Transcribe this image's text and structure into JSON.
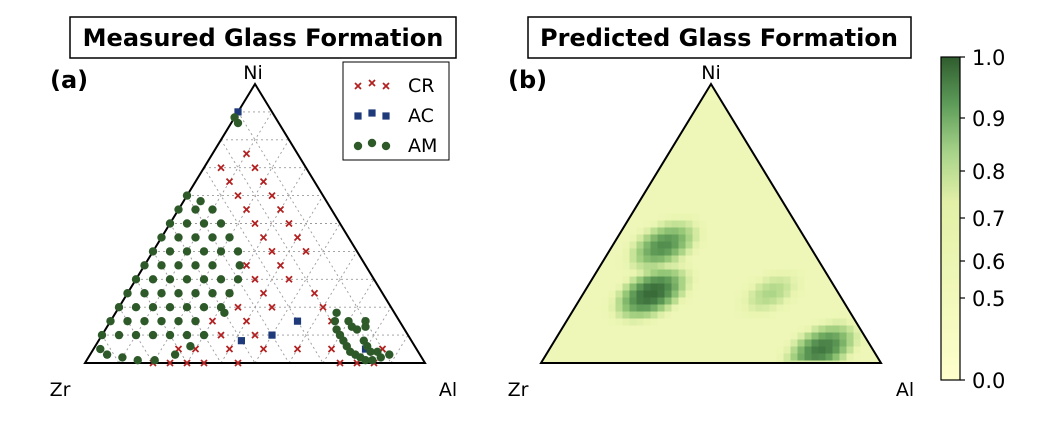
{
  "chart_data": [
    {
      "type": "scatter",
      "panel_label": "(a)",
      "title": "Measured Glass Formation",
      "vertices": {
        "top": "Ni",
        "left": "Zr",
        "right": "Al"
      },
      "legend": [
        {
          "label": "CR",
          "marker": "x",
          "color": "#b22222"
        },
        {
          "label": "AC",
          "marker": "square",
          "color": "#1f3a7a"
        },
        {
          "label": "AM",
          "marker": "circle",
          "color": "#2e5a2a"
        }
      ],
      "series": [
        {
          "name": "CR",
          "points": [
            [
              0.1,
              0.75
            ],
            [
              0.05,
              0.7
            ],
            [
              0.15,
              0.7
            ],
            [
              0.1,
              0.65
            ],
            [
              0.2,
              0.65
            ],
            [
              0.15,
              0.6
            ],
            [
              0.25,
              0.6
            ],
            [
              0.2,
              0.55
            ],
            [
              0.3,
              0.55
            ],
            [
              0.25,
              0.5
            ],
            [
              0.35,
              0.5
            ],
            [
              0.3,
              0.45
            ],
            [
              0.4,
              0.45
            ],
            [
              0.35,
              0.4
            ],
            [
              0.45,
              0.4
            ],
            [
              0.4,
              0.35
            ],
            [
              0.3,
              0.35
            ],
            [
              0.35,
              0.3
            ],
            [
              0.45,
              0.3
            ],
            [
              0.4,
              0.25
            ],
            [
              0.3,
              0.25
            ],
            [
              0.35,
              0.2
            ],
            [
              0.45,
              0.2
            ],
            [
              0.4,
              0.15
            ],
            [
              0.3,
              0.15
            ],
            [
              0.35,
              0.1
            ],
            [
              0.45,
              0.1
            ],
            [
              0.4,
              0.05
            ],
            [
              0.3,
              0.05
            ],
            [
              0.35,
              0.0
            ],
            [
              0.45,
              0.0
            ],
            [
              0.55,
              0.25
            ],
            [
              0.6,
              0.2
            ],
            [
              0.65,
              0.15
            ],
            [
              0.7,
              0.1
            ],
            [
              0.5,
              0.05
            ],
            [
              0.6,
              0.05
            ],
            [
              0.7,
              0.05
            ],
            [
              0.75,
              0.0
            ],
            [
              0.85,
              0.05
            ],
            [
              0.8,
              0.0
            ],
            [
              0.85,
              0.0
            ],
            [
              0.25,
              0.05
            ],
            [
              0.2,
              0.0
            ],
            [
              0.25,
              0.0
            ],
            [
              0.3,
              0.0
            ]
          ]
        },
        {
          "name": "AC",
          "points": [
            [
              0.0,
              0.9
            ],
            [
              0.55,
              0.15
            ],
            [
              0.5,
              0.1
            ],
            [
              0.42,
              0.08
            ],
            [
              0.8,
              0.05
            ]
          ]
        },
        {
          "name": "AM",
          "points": [
            [
              0.0,
              0.88
            ],
            [
              0.02,
              0.86
            ],
            [
              0.0,
              0.6
            ],
            [
              0.0,
              0.55
            ],
            [
              0.0,
              0.5
            ],
            [
              0.0,
              0.45
            ],
            [
              0.0,
              0.4
            ],
            [
              0.0,
              0.35
            ],
            [
              0.0,
              0.3
            ],
            [
              0.0,
              0.25
            ],
            [
              0.0,
              0.2
            ],
            [
              0.0,
              0.15
            ],
            [
              0.0,
              0.1
            ],
            [
              0.05,
              0.55
            ],
            [
              0.05,
              0.5
            ],
            [
              0.05,
              0.45
            ],
            [
              0.05,
              0.4
            ],
            [
              0.05,
              0.35
            ],
            [
              0.05,
              0.3
            ],
            [
              0.05,
              0.25
            ],
            [
              0.05,
              0.2
            ],
            [
              0.05,
              0.15
            ],
            [
              0.05,
              0.1
            ],
            [
              0.1,
              0.5
            ],
            [
              0.1,
              0.45
            ],
            [
              0.1,
              0.4
            ],
            [
              0.1,
              0.35
            ],
            [
              0.1,
              0.3
            ],
            [
              0.1,
              0.25
            ],
            [
              0.1,
              0.2
            ],
            [
              0.1,
              0.15
            ],
            [
              0.1,
              0.1
            ],
            [
              0.15,
              0.45
            ],
            [
              0.15,
              0.4
            ],
            [
              0.15,
              0.35
            ],
            [
              0.15,
              0.3
            ],
            [
              0.15,
              0.25
            ],
            [
              0.15,
              0.2
            ],
            [
              0.15,
              0.15
            ],
            [
              0.15,
              0.1
            ],
            [
              0.2,
              0.4
            ],
            [
              0.2,
              0.35
            ],
            [
              0.2,
              0.3
            ],
            [
              0.2,
              0.25
            ],
            [
              0.2,
              0.2
            ],
            [
              0.2,
              0.15
            ],
            [
              0.2,
              0.1
            ],
            [
              0.25,
              0.3
            ],
            [
              0.25,
              0.25
            ],
            [
              0.25,
              0.2
            ],
            [
              0.25,
              0.15
            ],
            [
              0.25,
              0.1
            ],
            [
              0.3,
              0.2
            ],
            [
              0.02,
              0.05
            ],
            [
              0.05,
              0.03
            ],
            [
              0.1,
              0.02
            ],
            [
              0.15,
              0.01
            ],
            [
              0.2,
              0.01
            ],
            [
              0.25,
              0.03
            ],
            [
              0.28,
              0.06
            ],
            [
              0.3,
              0.1
            ],
            [
              0.05,
              0.58
            ],
            [
              0.1,
              0.55
            ],
            [
              0.15,
              0.5
            ],
            [
              0.2,
              0.45
            ],
            [
              0.25,
              0.4
            ],
            [
              0.28,
              0.35
            ],
            [
              0.3,
              0.3
            ],
            [
              0.3,
              0.25
            ],
            [
              0.32,
              0.18
            ],
            [
              0.65,
              0.18
            ],
            [
              0.66,
              0.15
            ],
            [
              0.68,
              0.12
            ],
            [
              0.7,
              0.1
            ],
            [
              0.72,
              0.08
            ],
            [
              0.74,
              0.06
            ],
            [
              0.76,
              0.04
            ],
            [
              0.78,
              0.03
            ],
            [
              0.8,
              0.02
            ],
            [
              0.82,
              0.01
            ],
            [
              0.84,
              0.01
            ],
            [
              0.86,
              0.02
            ],
            [
              0.88,
              0.03
            ],
            [
              0.7,
              0.15
            ],
            [
              0.72,
              0.13
            ],
            [
              0.74,
              0.12
            ],
            [
              0.76,
              0.13
            ],
            [
              0.75,
              0.15
            ],
            [
              0.78,
              0.08
            ],
            [
              0.8,
              0.06
            ],
            [
              0.82,
              0.04
            ],
            [
              0.84,
              0.04
            ]
          ]
        }
      ]
    },
    {
      "type": "heatmap",
      "panel_label": "(b)",
      "title": "Predicted Glass Formation",
      "vertices": {
        "top": "Ni",
        "left": "Zr",
        "right": "Al"
      },
      "colorbar": {
        "ticks": [
          "1.0",
          "0.9",
          "0.8",
          "0.7",
          "0.6",
          "0.5",
          "0.0"
        ],
        "low_color": "#ffffcc",
        "high_color": "#2f5c2e"
      },
      "high_regions": [
        {
          "center": [
            0.2,
            0.25
          ],
          "value": 0.95
        },
        {
          "center": [
            0.15,
            0.42
          ],
          "value": 0.85
        },
        {
          "center": [
            0.8,
            0.05
          ],
          "value": 0.9
        },
        {
          "center": [
            0.55,
            0.25
          ],
          "value": 0.65
        }
      ]
    }
  ]
}
